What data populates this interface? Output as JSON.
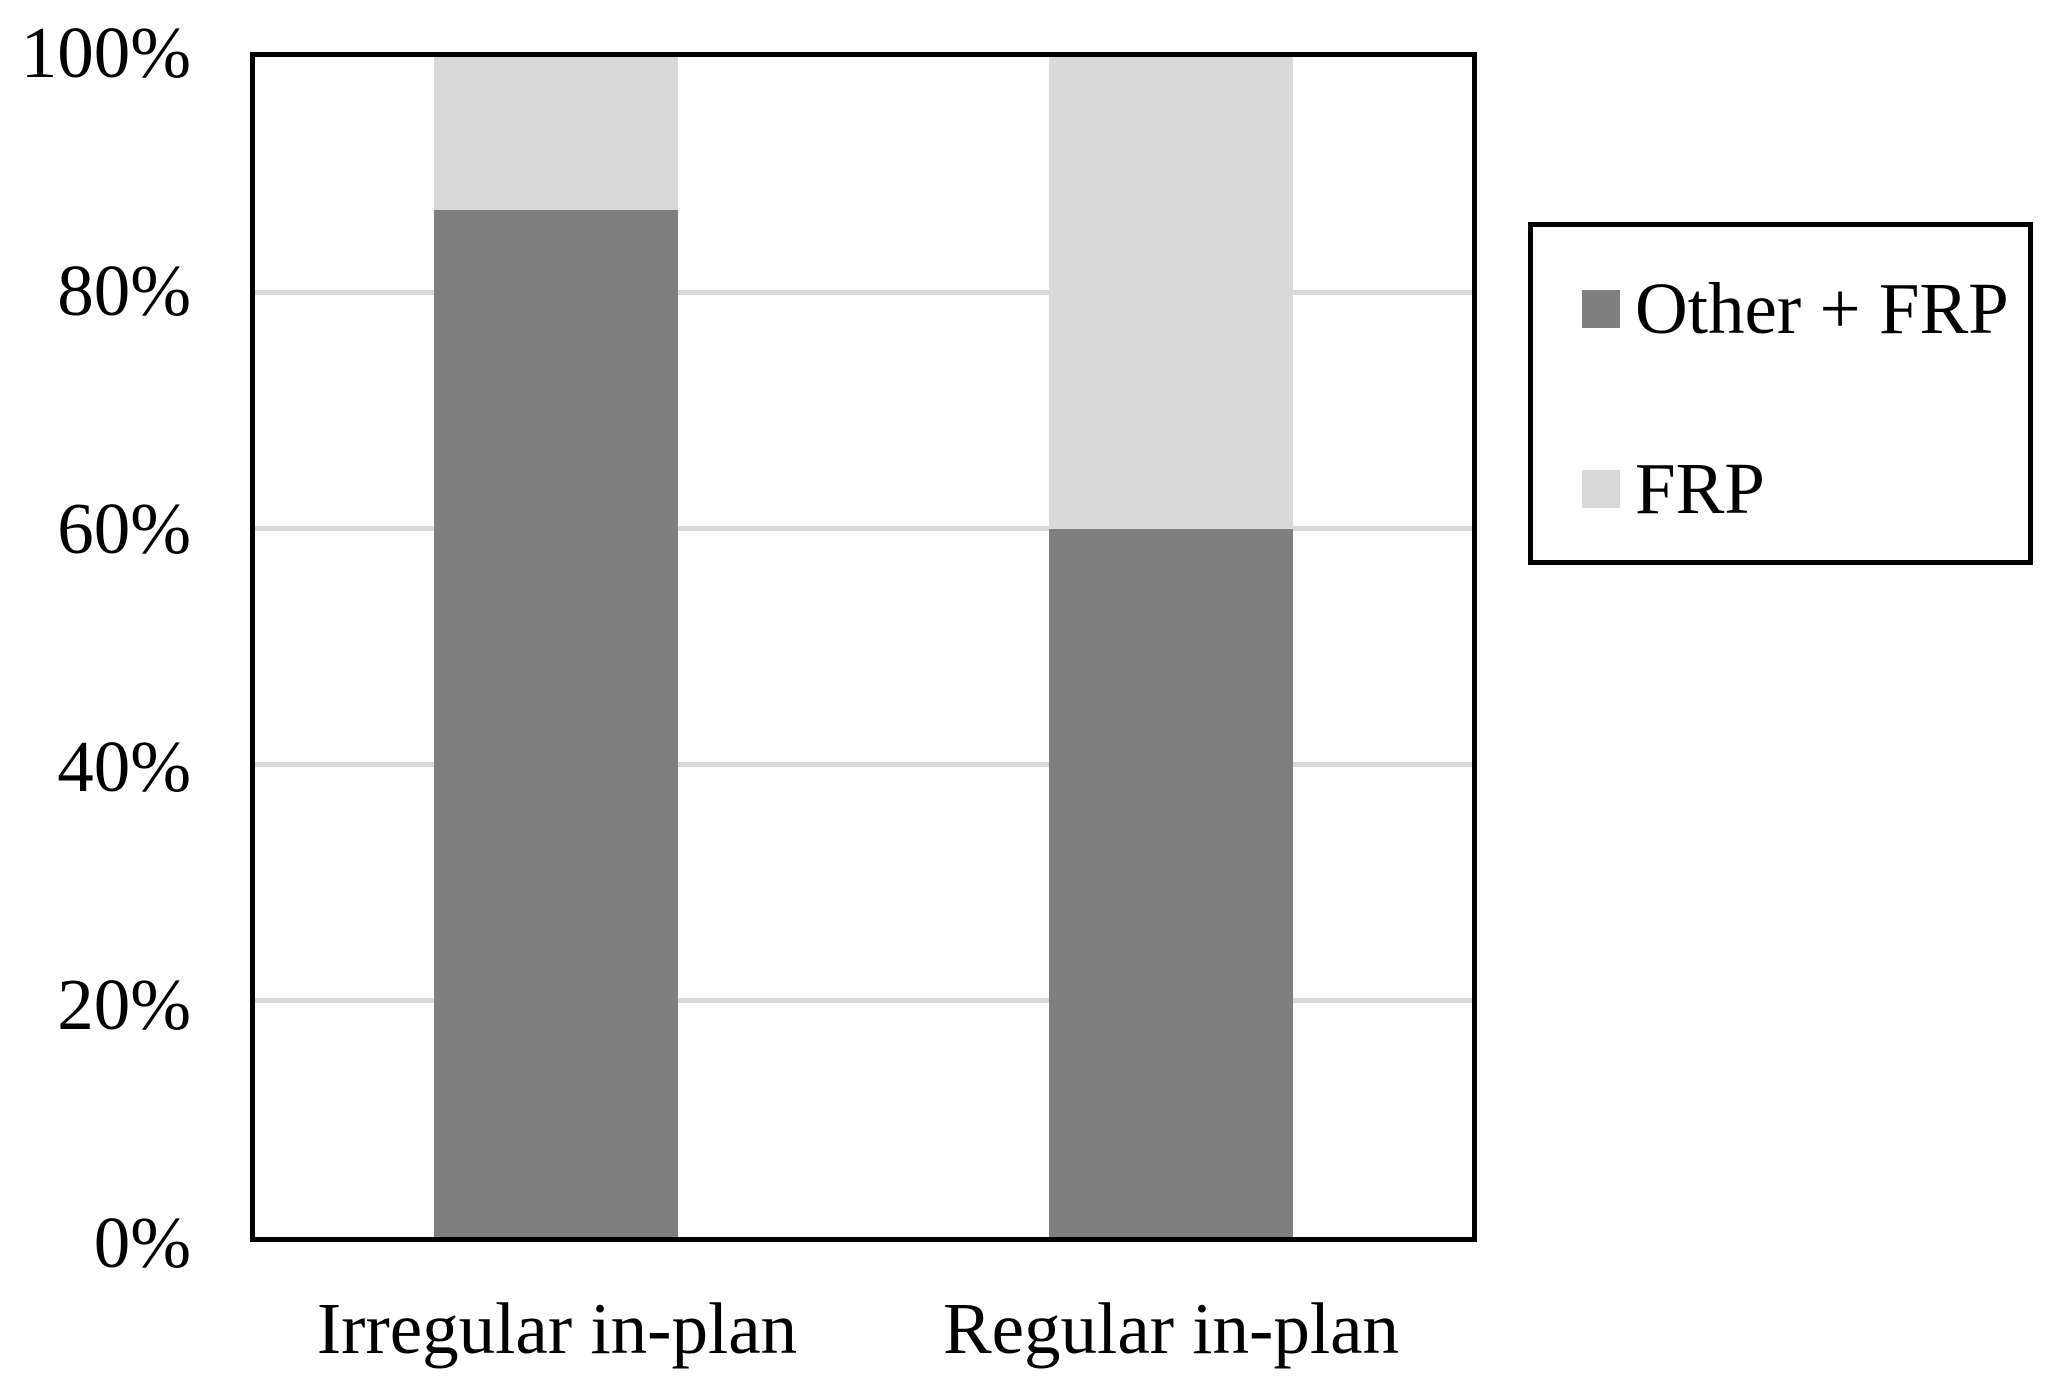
{
  "chart_data": {
    "type": "bar",
    "stacked": true,
    "percent_stacked": true,
    "categories": [
      "Irregular in-plan",
      "Regular in-plan"
    ],
    "series": [
      {
        "name": "Other + FRP",
        "color": "#7F7F7F",
        "values": [
          87,
          60
        ]
      },
      {
        "name": "FRP",
        "color": "#D9D9D9",
        "values": [
          13,
          40
        ]
      }
    ],
    "title": "",
    "xlabel": "",
    "ylabel": "",
    "ylim": [
      0,
      100
    ],
    "y_ticks": [
      "0%",
      "20%",
      "40%",
      "60%",
      "80%",
      "100%"
    ],
    "y_tick_labels_desc": [
      "100%",
      "80%",
      "60%",
      "40%",
      "20%",
      "0%"
    ],
    "gridlines": true,
    "gridline_color": "#D9D9D9",
    "axis_color": "#000000",
    "plot_border": true,
    "legend_position": "right",
    "background": "#FFFFFF"
  }
}
